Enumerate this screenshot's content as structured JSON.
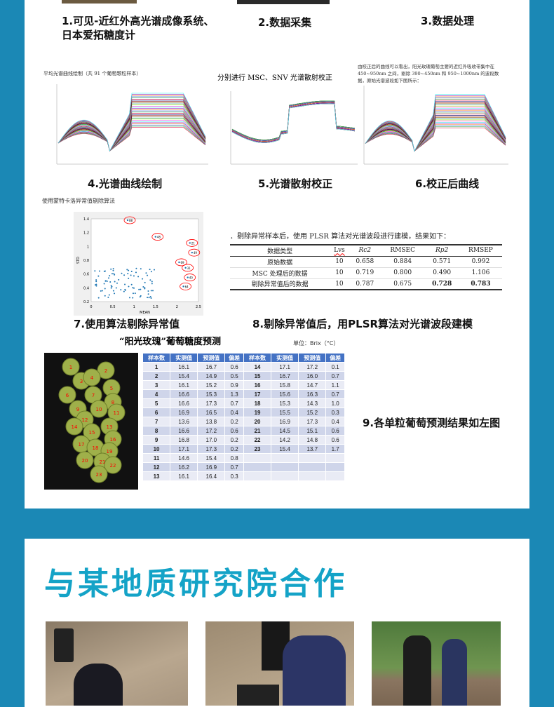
{
  "colors": {
    "background": "#1b88b5",
    "title": "#14a3c7"
  },
  "steps": {
    "s1": "1.可见-近红外高光谱成像系统、",
    "s1b": "日本爱拓糖度计",
    "s2": "2.数据采集",
    "s3": "3.数据处理",
    "s4": "4.光谱曲线绘制",
    "s5": "5.光谱散射校正",
    "s6": "6.校正后曲线",
    "s7": "7.使用算法剔除异常值",
    "s8": "8.剔除异常值后，用PLSR算法对光谱波段建模",
    "s9": "9.各单粒葡萄预测结果如左图"
  },
  "charts": {
    "c1_title": "平均光谱曲线绘制（共 91 个葡萄颗粒样本）",
    "c2_title": "分别进行 MSC、SNV 光谱散射校正",
    "c3_title": "由校正后的曲线可以看出，阳光玫瑰葡萄主要的近红外吸收带集中在 450~950nm 之间，剔除 390~450nm 和 950~1000nm 的波段数据，原始光谱波段如下图所示：",
    "scatter_title": "使用蒙特卡洛异常值剔除算法",
    "scatter_xlabel": "MEAN",
    "scatter_ylabel": "STD",
    "scatter_xticks": [
      "0",
      "0.5",
      "1",
      "1.5",
      "2",
      "2.5"
    ],
    "scatter_yticks": [
      "1.4",
      "1.2",
      "1",
      "0.8",
      "0.6",
      "0.4",
      "0.2"
    ],
    "outliers": [
      "88",
      "48",
      "21",
      "49",
      "69",
      "31",
      "40",
      "64"
    ]
  },
  "plsr": {
    "intro": "．剔除异常样本后，使用 PLSR 算法对光谱波段进行建模，结果如下：",
    "headers": [
      "数据类型",
      "Lvs",
      "Rc2",
      "RMSEC",
      "Rp2",
      "RMSEP"
    ],
    "rows": [
      [
        "原始数据",
        "10",
        "0.658",
        "0.884",
        "0.571",
        "0.992"
      ],
      [
        "MSC 处理后的数据",
        "10",
        "0.719",
        "0.800",
        "0.490",
        "1.106"
      ],
      [
        "剔除异常值后的数据",
        "10",
        "0.787",
        "0.675",
        "0.728",
        "0.783"
      ]
    ]
  },
  "brix": {
    "title": "“阳光玫瑰”葡萄糖度预测",
    "unit": "单位：Brix（°C）",
    "headers": [
      "样本数",
      "实测值",
      "预测值",
      "偏差",
      "样本数",
      "实测值",
      "预测值",
      "偏差"
    ],
    "rows": [
      [
        "1",
        "16.1",
        "16.7",
        "0.6",
        "14",
        "17.1",
        "17.2",
        "0.1"
      ],
      [
        "2",
        "15.4",
        "14.9",
        "0.5",
        "15",
        "16.7",
        "16.0",
        "0.7"
      ],
      [
        "3",
        "16.1",
        "15.2",
        "0.9",
        "16",
        "15.8",
        "14.7",
        "1.1"
      ],
      [
        "4",
        "16.6",
        "15.3",
        "1.3",
        "17",
        "15.6",
        "16.3",
        "0.7"
      ],
      [
        "5",
        "16.6",
        "17.3",
        "0.7",
        "18",
        "15.3",
        "14.3",
        "1.0"
      ],
      [
        "6",
        "16.9",
        "16.5",
        "0.4",
        "19",
        "15.5",
        "15.2",
        "0.3"
      ],
      [
        "7",
        "13.6",
        "13.8",
        "0.2",
        "20",
        "16.9",
        "17.3",
        "0.4"
      ],
      [
        "8",
        "16.6",
        "17.2",
        "0.6",
        "21",
        "14.5",
        "15.1",
        "0.6"
      ],
      [
        "9",
        "16.8",
        "17.0",
        "0.2",
        "22",
        "14.2",
        "14.8",
        "0.6"
      ],
      [
        "10",
        "17.1",
        "17.3",
        "0.2",
        "23",
        "15.4",
        "13.7",
        "1.7"
      ],
      [
        "11",
        "14.6",
        "15.4",
        "0.8",
        "",
        "",
        "",
        ""
      ],
      [
        "12",
        "16.2",
        "16.9",
        "0.7",
        "",
        "",
        "",
        ""
      ],
      [
        "13",
        "16.1",
        "16.4",
        "0.3",
        "",
        "",
        "",
        ""
      ]
    ]
  },
  "section2": {
    "title": "与某地质研究院合作"
  }
}
